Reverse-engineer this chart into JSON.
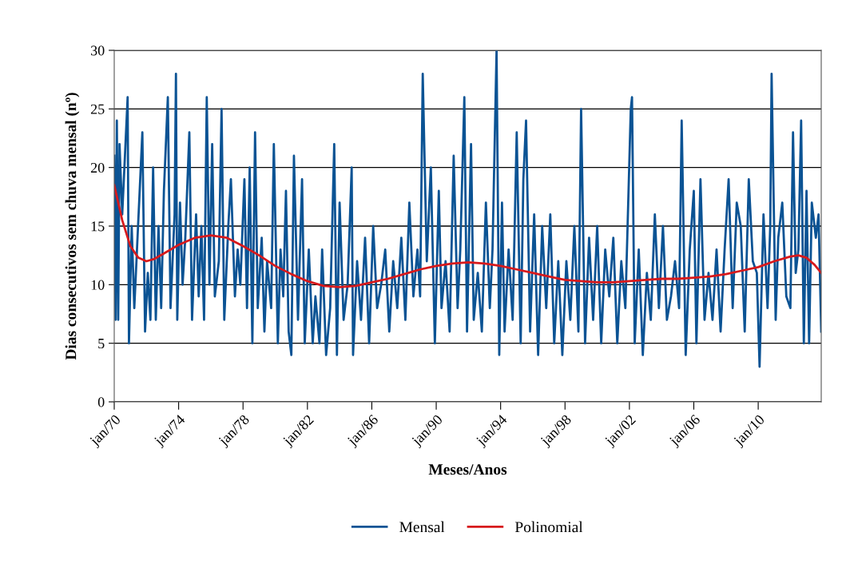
{
  "chart_data": {
    "type": "line",
    "xlabel": "Meses/Anos",
    "ylabel": "Dias consecutivos sem chuva mensal (nº)",
    "xlim": [
      "1970-01",
      "2013-12"
    ],
    "xticks": [
      {
        "value": "1970-01",
        "label": "jan/70"
      },
      {
        "value": "1974-01",
        "label": "jan/74"
      },
      {
        "value": "1978-01",
        "label": "jan/78"
      },
      {
        "value": "1982-01",
        "label": "jan/82"
      },
      {
        "value": "1986-01",
        "label": "jan/86"
      },
      {
        "value": "1990-01",
        "label": "jan/90"
      },
      {
        "value": "1994-01",
        "label": "jan/94"
      },
      {
        "value": "1998-01",
        "label": "jan/98"
      },
      {
        "value": "2002-01",
        "label": "jan/02"
      },
      {
        "value": "2006-01",
        "label": "jan/06"
      },
      {
        "value": "2010-01",
        "label": "jan/10"
      }
    ],
    "ylim": [
      0,
      30
    ],
    "yticks": [
      0,
      5,
      10,
      15,
      20,
      25,
      30
    ],
    "grid": "y",
    "legend": "bottom",
    "marker": "none",
    "line_style": "solid",
    "series": [
      {
        "name": "Mensal",
        "color": "#0b5394",
        "x": [
          "1970-01",
          "1970-02",
          "1970-03",
          "1970-04",
          "1970-05",
          "1970-07",
          "1970-09",
          "1970-11",
          "1970-12",
          "1971-02",
          "1971-04",
          "1971-06",
          "1971-10",
          "1971-12",
          "1972-02",
          "1972-04",
          "1972-06",
          "1972-08",
          "1972-10",
          "1972-12",
          "1973-02",
          "1973-05",
          "1973-07",
          "1973-10",
          "1973-11",
          "1973-12",
          "1974-02",
          "1974-04",
          "1974-06",
          "1974-09",
          "1974-11",
          "1975-02",
          "1975-04",
          "1975-06",
          "1975-08",
          "1975-10",
          "1975-12",
          "1976-02",
          "1976-04",
          "1976-07",
          "1976-09",
          "1976-11",
          "1977-02",
          "1977-04",
          "1977-07",
          "1977-09",
          "1977-11",
          "1978-02",
          "1978-04",
          "1978-06",
          "1978-08",
          "1978-10",
          "1978-12",
          "1979-03",
          "1979-05",
          "1979-07",
          "1979-10",
          "1979-12",
          "1980-03",
          "1980-05",
          "1980-07",
          "1980-09",
          "1980-11",
          "1981-01",
          "1981-03",
          "1981-06",
          "1981-09",
          "1981-11",
          "1982-02",
          "1982-05",
          "1982-07",
          "1982-10",
          "1982-12",
          "1983-03",
          "1983-06",
          "1983-09",
          "1983-11",
          "1984-01",
          "1984-04",
          "1984-07",
          "1984-10",
          "1984-11",
          "1985-02",
          "1985-05",
          "1985-08",
          "1985-11",
          "1986-02",
          "1986-05",
          "1986-08",
          "1986-11",
          "1987-02",
          "1987-05",
          "1987-08",
          "1987-11",
          "1988-02",
          "1988-05",
          "1988-08",
          "1988-11",
          "1989-01",
          "1989-03",
          "1989-06",
          "1989-09",
          "1989-12",
          "1990-03",
          "1990-05",
          "1990-08",
          "1990-11",
          "1991-02",
          "1991-05",
          "1991-07",
          "1991-10",
          "1991-12",
          "1992-03",
          "1992-05",
          "1992-08",
          "1992-11",
          "1993-02",
          "1993-05",
          "1993-07",
          "1993-10",
          "1993-12",
          "1994-02",
          "1994-04",
          "1994-07",
          "1994-10",
          "1995-01",
          "1995-04",
          "1995-06",
          "1995-08",
          "1995-11",
          "1996-02",
          "1996-05",
          "1996-08",
          "1996-11",
          "1997-02",
          "1997-05",
          "1997-08",
          "1997-11",
          "1998-02",
          "1998-05",
          "1998-08",
          "1998-11",
          "1999-01",
          "1999-04",
          "1999-07",
          "1999-10",
          "2000-01",
          "2000-04",
          "2000-07",
          "2000-10",
          "2001-01",
          "2001-04",
          "2001-07",
          "2001-10",
          "2002-02",
          "2002-03",
          "2002-05",
          "2002-08",
          "2002-11",
          "2003-02",
          "2003-05",
          "2003-08",
          "2003-11",
          "2004-02",
          "2004-05",
          "2004-08",
          "2004-11",
          "2005-02",
          "2005-04",
          "2005-07",
          "2005-10",
          "2006-01",
          "2006-03",
          "2006-06",
          "2006-09",
          "2006-12",
          "2007-03",
          "2007-06",
          "2007-09",
          "2007-12",
          "2008-03",
          "2008-06",
          "2008-09",
          "2008-12",
          "2009-03",
          "2009-06",
          "2009-09",
          "2009-12",
          "2010-02",
          "2010-05",
          "2010-08",
          "2010-10",
          "2010-11",
          "2011-02",
          "2011-04",
          "2011-07",
          "2011-10",
          "2012-01",
          "2012-03",
          "2012-05",
          "2012-07",
          "2012-09",
          "2012-11",
          "2013-01",
          "2013-03",
          "2013-05",
          "2013-08",
          "2013-10",
          "2013-12"
        ],
        "values": [
          21,
          7,
          24,
          7,
          22,
          16,
          21,
          26,
          5,
          15,
          8,
          13,
          23,
          6,
          11,
          7,
          20,
          7,
          15,
          8,
          18,
          26,
          8,
          16,
          28,
          7,
          17,
          10,
          14,
          23,
          7,
          16,
          9,
          15,
          7,
          26,
          10,
          22,
          9,
          12,
          25,
          7,
          15,
          19,
          9,
          13,
          10,
          19,
          8,
          20,
          5,
          23,
          8,
          14,
          6,
          12,
          8,
          22,
          5,
          13,
          9,
          18,
          6,
          4,
          21,
          7,
          19,
          5,
          13,
          5,
          9,
          5,
          13,
          4,
          8,
          22,
          4,
          17,
          7,
          10,
          20,
          4,
          12,
          7,
          14,
          5,
          15,
          8,
          10,
          13,
          6,
          12,
          8,
          14,
          7,
          17,
          9,
          13,
          9,
          28,
          12,
          20,
          5,
          18,
          8,
          12,
          6,
          21,
          8,
          13,
          26,
          6,
          22,
          7,
          11,
          6,
          17,
          8,
          13,
          30,
          4,
          17,
          6,
          13,
          7,
          23,
          5,
          19,
          24,
          6,
          16,
          4,
          15,
          8,
          16,
          5,
          12,
          4,
          12,
          7,
          15,
          6,
          25,
          5,
          14,
          7,
          15,
          5,
          13,
          9,
          14,
          5,
          12,
          8,
          25,
          26,
          5,
          13,
          4,
          11,
          7,
          16,
          8,
          15,
          7,
          9,
          12,
          8,
          24,
          4,
          13,
          18,
          5,
          19,
          7,
          11,
          7,
          13,
          6,
          13,
          19,
          8,
          17,
          15,
          6,
          19,
          12,
          11,
          3,
          16,
          8,
          15,
          28,
          7,
          14,
          17,
          9,
          8,
          23,
          11,
          13,
          24,
          5,
          18,
          5,
          17,
          14,
          16,
          6
        ]
      },
      {
        "name": "Polinomial",
        "color": "#d7191c",
        "x": [
          "1970-01",
          "1970-07",
          "1971-01",
          "1971-07",
          "1972-01",
          "1972-07",
          "1973-01",
          "1974-01",
          "1975-01",
          "1976-01",
          "1977-01",
          "1978-01",
          "1979-01",
          "1980-01",
          "1981-01",
          "1982-01",
          "1983-01",
          "1984-01",
          "1985-01",
          "1986-01",
          "1987-01",
          "1988-01",
          "1989-01",
          "1990-01",
          "1991-01",
          "1992-01",
          "1993-01",
          "1994-01",
          "1995-01",
          "1996-01",
          "1997-01",
          "1998-01",
          "1999-01",
          "2000-01",
          "2001-01",
          "2002-01",
          "2003-01",
          "2004-01",
          "2005-01",
          "2006-01",
          "2007-01",
          "2008-01",
          "2009-01",
          "2010-01",
          "2011-01",
          "2012-01",
          "2012-07",
          "2013-01",
          "2013-07",
          "2013-12"
        ],
        "values": [
          18.5,
          15.5,
          13.3,
          12.3,
          12.0,
          12.2,
          12.6,
          13.4,
          14.0,
          14.2,
          14.0,
          13.3,
          12.5,
          11.6,
          10.9,
          10.3,
          9.9,
          9.8,
          9.9,
          10.2,
          10.5,
          10.9,
          11.3,
          11.6,
          11.8,
          11.9,
          11.8,
          11.6,
          11.3,
          11.0,
          10.7,
          10.4,
          10.3,
          10.2,
          10.2,
          10.3,
          10.4,
          10.5,
          10.5,
          10.6,
          10.7,
          10.9,
          11.2,
          11.5,
          12.0,
          12.4,
          12.5,
          12.3,
          11.7,
          11.0
        ]
      }
    ]
  }
}
